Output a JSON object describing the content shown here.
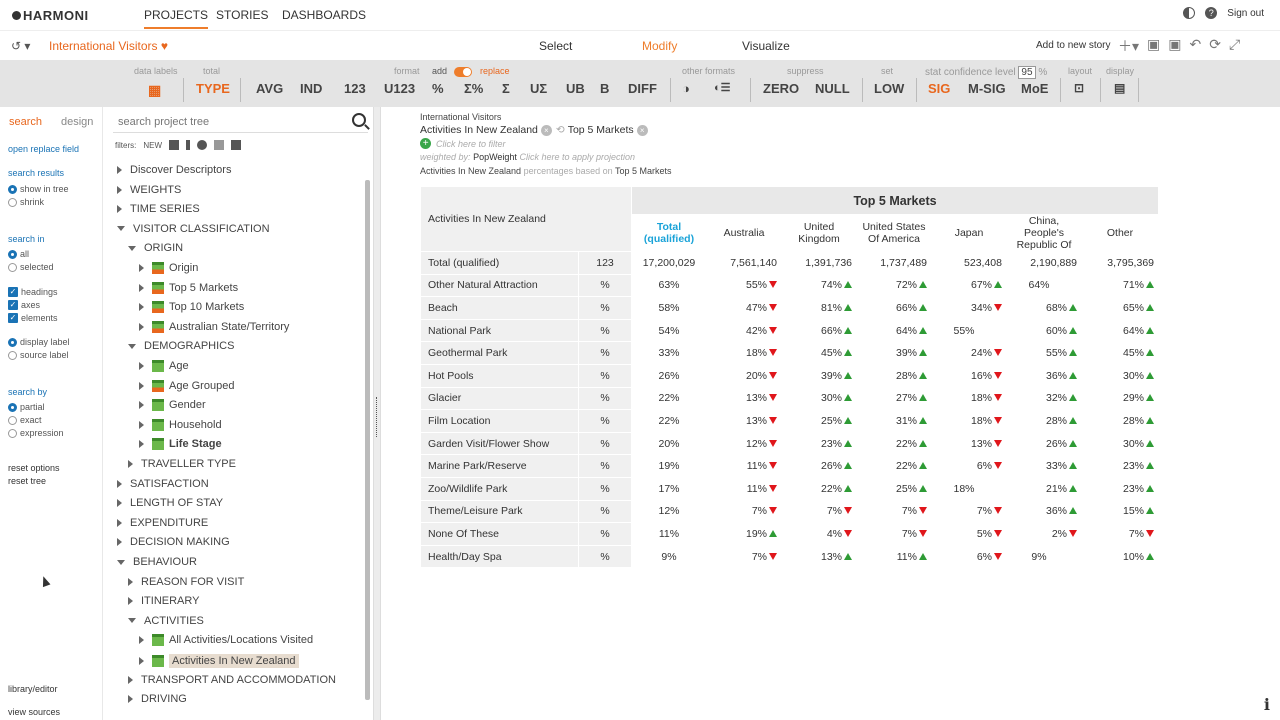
{
  "nav": {
    "logo": "HARMONI",
    "tabs": [
      "PROJECTS",
      "STORIES",
      "DASHBOARDS"
    ],
    "sign_out": "Sign out"
  },
  "secondary": {
    "project_title": "International Visitors",
    "modes": [
      "Select",
      "Modify",
      "Visualize"
    ],
    "add_story": "Add to new story"
  },
  "toolbar": {
    "data_labels": "data labels",
    "total": "total",
    "type": "TYPE",
    "avg": "AVG",
    "ind": "IND",
    "n123": "123",
    "u123": "U123",
    "pct": "%",
    "sum_pct": "Σ%",
    "sum": "Σ",
    "usum": "UΣ",
    "ub": "UB",
    "b": "B",
    "diff": "DIFF",
    "format": "format",
    "add": "add",
    "replace": "replace",
    "other_formats": "other formats",
    "suppress": "suppress",
    "zero": "ZERO",
    "null": "NULL",
    "set": "set",
    "low": "LOW",
    "stat": "stat",
    "confidence_level": "confidence level",
    "confidence_value": "95",
    "conf_pct": "%",
    "sig": "SIG",
    "msig": "M-SIG",
    "moe": "MoE",
    "layout": "layout",
    "display": "display"
  },
  "left": {
    "tab_search": "search",
    "tab_design": "design",
    "open_replace": "open replace field",
    "search_results": "search results",
    "show_in_tree": "show in tree",
    "shrink": "shrink",
    "search_in": "search in",
    "all": "all",
    "selected": "selected",
    "headings": "headings",
    "axes": "axes",
    "elements": "elements",
    "display_label": "display label",
    "source_label": "source label",
    "search_by": "search by",
    "partial": "partial",
    "exact": "exact",
    "expression": "expression",
    "reset_options": "reset options",
    "reset_tree": "reset tree",
    "library_editor": "library/editor",
    "view_sources": "view sources"
  },
  "tree": {
    "search_placeholder": "search project tree",
    "filters_label": "filters:",
    "filter_new": "NEW",
    "rows": [
      {
        "label": "Discover Descriptors",
        "depth": 0,
        "caret": "right",
        "icon": false
      },
      {
        "label": "WEIGHTS",
        "depth": 0,
        "caret": "right",
        "icon": false
      },
      {
        "label": "TIME SERIES",
        "depth": 0,
        "caret": "right",
        "icon": false
      },
      {
        "label": "VISITOR CLASSIFICATION",
        "depth": 0,
        "caret": "down",
        "icon": false
      },
      {
        "label": "ORIGIN",
        "depth": 1,
        "caret": "down",
        "icon": false
      },
      {
        "label": "Origin",
        "depth": 2,
        "caret": "right",
        "icon": "multi"
      },
      {
        "label": "Top 5 Markets",
        "depth": 2,
        "caret": "right",
        "icon": "multi"
      },
      {
        "label": "Top 10 Markets",
        "depth": 2,
        "caret": "right",
        "icon": "multi"
      },
      {
        "label": "Australian State/Territory",
        "depth": 2,
        "caret": "right",
        "icon": "multi"
      },
      {
        "label": "DEMOGRAPHICS",
        "depth": 1,
        "caret": "down",
        "icon": false
      },
      {
        "label": "Age",
        "depth": 2,
        "caret": "right",
        "icon": "plain"
      },
      {
        "label": "Age Grouped",
        "depth": 2,
        "caret": "right",
        "icon": "multi"
      },
      {
        "label": "Gender",
        "depth": 2,
        "caret": "right",
        "icon": "plain"
      },
      {
        "label": "Household",
        "depth": 2,
        "caret": "right",
        "icon": "plain"
      },
      {
        "label": "Life Stage",
        "depth": 2,
        "caret": "right",
        "icon": "plain",
        "bold": true
      },
      {
        "label": "TRAVELLER TYPE",
        "depth": 1,
        "caret": "right",
        "icon": false
      },
      {
        "label": "SATISFACTION",
        "depth": 0,
        "caret": "right",
        "icon": false
      },
      {
        "label": "LENGTH OF STAY",
        "depth": 0,
        "caret": "right",
        "icon": false
      },
      {
        "label": "EXPENDITURE",
        "depth": 0,
        "caret": "right",
        "icon": false
      },
      {
        "label": "DECISION MAKING",
        "depth": 0,
        "caret": "right",
        "icon": false
      },
      {
        "label": "BEHAVIOUR",
        "depth": 0,
        "caret": "down",
        "icon": false
      },
      {
        "label": "REASON FOR VISIT",
        "depth": 1,
        "caret": "right",
        "icon": false
      },
      {
        "label": "ITINERARY",
        "depth": 1,
        "caret": "right",
        "icon": false
      },
      {
        "label": "ACTIVITIES",
        "depth": 1,
        "caret": "down",
        "icon": false
      },
      {
        "label": "All Activities/Locations Visited",
        "depth": 2,
        "caret": "right",
        "icon": "plain"
      },
      {
        "label": "Activities In New Zealand",
        "depth": 2,
        "caret": "right",
        "icon": "plain",
        "selected": true
      },
      {
        "label": "TRANSPORT AND ACCOMMODATION",
        "depth": 1,
        "caret": "right",
        "icon": false
      },
      {
        "label": "DRIVING",
        "depth": 1,
        "caret": "right",
        "icon": false
      }
    ]
  },
  "report": {
    "dataset": "International Visitors",
    "row_var": "Activities In New Zealand",
    "col_var": "Top 5 Markets",
    "filter_hint": "Click here to filter",
    "weighted_by": "weighted by:",
    "weight": "PopWeight",
    "projection_hint": "Click here to apply projection",
    "pct_based_on": "percentages based on",
    "base_var": "Top 5 Markets",
    "banner": "Top 5 Markets",
    "corner": "Activities In New Zealand",
    "columns": [
      "Total (qualified)",
      "Australia",
      "United Kingdom",
      "United States Of America",
      "Japan",
      "China, People's Republic Of",
      "Other"
    ],
    "total_row": {
      "label": "Total (qualified)",
      "unit": "123",
      "values": [
        "17,200,029",
        "7,561,140",
        "1,391,736",
        "1,737,489",
        "523,408",
        "2,190,889",
        "3,795,369"
      ]
    },
    "rows": [
      {
        "label": "Other Natural Attraction",
        "unit": "%",
        "values": [
          "63%",
          "55%",
          "74%",
          "72%",
          "67%",
          "64%",
          "71%"
        ],
        "sig": [
          "",
          "dn",
          "up",
          "up",
          "up",
          "",
          "up"
        ]
      },
      {
        "label": "Beach",
        "unit": "%",
        "values": [
          "58%",
          "47%",
          "81%",
          "66%",
          "34%",
          "68%",
          "65%"
        ],
        "sig": [
          "",
          "dn",
          "up",
          "up",
          "dn",
          "up",
          "up"
        ]
      },
      {
        "label": "National Park",
        "unit": "%",
        "values": [
          "54%",
          "42%",
          "66%",
          "64%",
          "55%",
          "60%",
          "64%"
        ],
        "sig": [
          "",
          "dn",
          "up",
          "up",
          "",
          "up",
          "up"
        ]
      },
      {
        "label": "Geothermal Park",
        "unit": "%",
        "values": [
          "33%",
          "18%",
          "45%",
          "39%",
          "24%",
          "55%",
          "45%"
        ],
        "sig": [
          "",
          "dn",
          "up",
          "up",
          "dn",
          "up",
          "up"
        ]
      },
      {
        "label": "Hot Pools",
        "unit": "%",
        "values": [
          "26%",
          "20%",
          "39%",
          "28%",
          "16%",
          "36%",
          "30%"
        ],
        "sig": [
          "",
          "dn",
          "up",
          "up",
          "dn",
          "up",
          "up"
        ]
      },
      {
        "label": "Glacier",
        "unit": "%",
        "values": [
          "22%",
          "13%",
          "30%",
          "27%",
          "18%",
          "32%",
          "29%"
        ],
        "sig": [
          "",
          "dn",
          "up",
          "up",
          "dn",
          "up",
          "up"
        ]
      },
      {
        "label": "Film Location",
        "unit": "%",
        "values": [
          "22%",
          "13%",
          "25%",
          "31%",
          "18%",
          "28%",
          "28%"
        ],
        "sig": [
          "",
          "dn",
          "up",
          "up",
          "dn",
          "up",
          "up"
        ]
      },
      {
        "label": "Garden Visit/Flower Show",
        "unit": "%",
        "values": [
          "20%",
          "12%",
          "23%",
          "22%",
          "13%",
          "26%",
          "30%"
        ],
        "sig": [
          "",
          "dn",
          "up",
          "up",
          "dn",
          "up",
          "up"
        ]
      },
      {
        "label": "Marine Park/Reserve",
        "unit": "%",
        "values": [
          "19%",
          "11%",
          "26%",
          "22%",
          "6%",
          "33%",
          "23%"
        ],
        "sig": [
          "",
          "dn",
          "up",
          "up",
          "dn",
          "up",
          "up"
        ]
      },
      {
        "label": "Zoo/Wildlife Park",
        "unit": "%",
        "values": [
          "17%",
          "11%",
          "22%",
          "25%",
          "18%",
          "21%",
          "23%"
        ],
        "sig": [
          "",
          "dn",
          "up",
          "up",
          "",
          "up",
          "up"
        ]
      },
      {
        "label": "Theme/Leisure Park",
        "unit": "%",
        "values": [
          "12%",
          "7%",
          "7%",
          "7%",
          "7%",
          "36%",
          "15%"
        ],
        "sig": [
          "",
          "dn",
          "dn",
          "dn",
          "dn",
          "up",
          "up"
        ]
      },
      {
        "label": "None Of These",
        "unit": "%",
        "values": [
          "11%",
          "19%",
          "4%",
          "7%",
          "5%",
          "2%",
          "7%"
        ],
        "sig": [
          "",
          "up",
          "dn",
          "dn",
          "dn",
          "dn",
          "dn"
        ]
      },
      {
        "label": "Health/Day Spa",
        "unit": "%",
        "values": [
          "9%",
          "7%",
          "13%",
          "11%",
          "6%",
          "9%",
          "10%"
        ],
        "sig": [
          "",
          "dn",
          "up",
          "up",
          "dn",
          "",
          "up"
        ]
      }
    ]
  },
  "colors": {
    "accent": "#ee7d2b",
    "sig_up": "#2e9b35",
    "sig_down": "#e0161b",
    "total_col": "#1aa3d8"
  }
}
